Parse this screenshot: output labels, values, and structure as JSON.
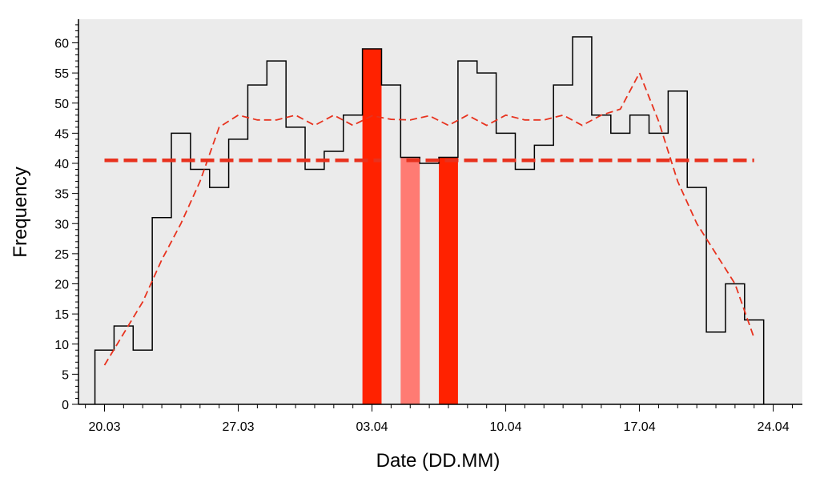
{
  "chart_data": {
    "type": "bar",
    "xlabel": "Date (DD.MM)",
    "ylabel": "Frequency",
    "ylim": [
      0,
      64
    ],
    "yticks": [
      0,
      5,
      10,
      15,
      20,
      25,
      30,
      35,
      40,
      45,
      50,
      55,
      60
    ],
    "xticks": [
      {
        "day": 0,
        "label": "20.03"
      },
      {
        "day": 7,
        "label": "27.03"
      },
      {
        "day": 14,
        "label": "03.04"
      },
      {
        "day": 21,
        "label": "10.04"
      },
      {
        "day": 28,
        "label": "17.04"
      },
      {
        "day": 35,
        "label": "24.04"
      }
    ],
    "xlim": [
      -1,
      36
    ],
    "background_color": "#ebebeb",
    "histogram": {
      "start_day": -0.5,
      "bin_width": 1,
      "values": [
        9,
        13,
        9,
        31,
        45,
        39,
        36,
        44,
        53,
        57,
        46,
        39,
        42,
        48,
        59,
        53,
        41,
        40,
        41,
        57,
        55,
        45,
        39,
        43,
        53,
        61,
        48,
        45,
        48,
        45,
        52,
        36,
        12,
        20,
        14
      ]
    },
    "highlight_bars": [
      {
        "day": 14,
        "value": 59,
        "color": "#ff2200"
      },
      {
        "day": 16,
        "value": 41,
        "color": "#ff7b73"
      },
      {
        "day": 18,
        "value": 41,
        "color": "#ff2200"
      }
    ],
    "trend_line": {
      "color": "#e8321e",
      "points": [
        [
          0,
          6.5
        ],
        [
          2,
          17
        ],
        [
          3,
          24
        ],
        [
          4,
          30
        ],
        [
          5,
          37
        ],
        [
          6,
          46
        ],
        [
          7,
          48
        ],
        [
          8,
          47.2
        ],
        [
          9,
          47.2
        ],
        [
          10,
          48
        ],
        [
          11,
          46.3
        ],
        [
          12,
          48
        ],
        [
          13,
          46.3
        ],
        [
          14,
          47.9
        ],
        [
          15,
          47.3
        ],
        [
          16,
          47.2
        ],
        [
          17,
          47.9
        ],
        [
          18,
          46.3
        ],
        [
          19,
          48
        ],
        [
          20,
          46.3
        ],
        [
          21,
          48
        ],
        [
          22,
          47.2
        ],
        [
          23,
          47.2
        ],
        [
          24,
          48
        ],
        [
          25,
          46.3
        ],
        [
          26,
          48
        ],
        [
          27,
          49
        ],
        [
          28,
          55
        ],
        [
          29,
          47
        ],
        [
          30,
          37
        ],
        [
          31,
          30
        ],
        [
          32,
          25
        ],
        [
          33,
          20
        ],
        [
          34,
          11
        ]
      ]
    },
    "mean_line": {
      "value": 40.5,
      "from_day": 0,
      "to_day": 34,
      "gap_from": 14.5,
      "gap_to": 15.8,
      "color": "#e8321e"
    }
  }
}
